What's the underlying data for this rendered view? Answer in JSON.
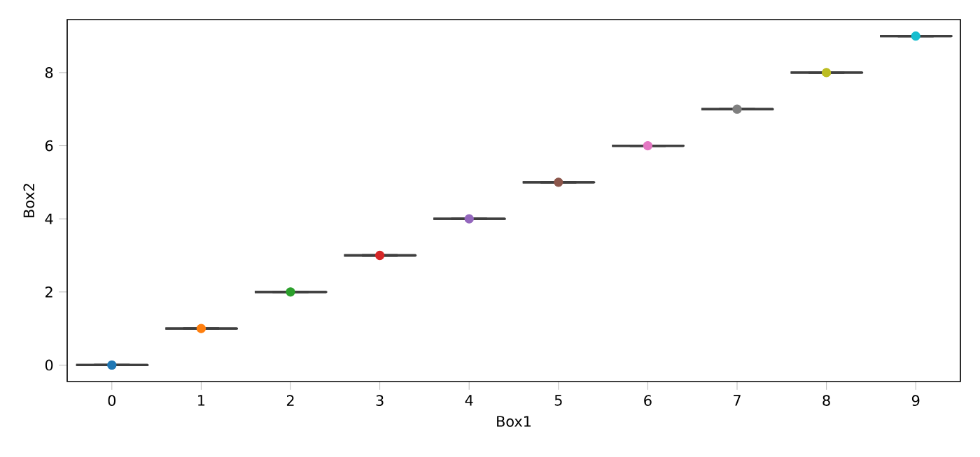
{
  "chart_data": {
    "type": "box",
    "xlabel": "Box1",
    "ylabel": "Box2",
    "categories": [
      "0",
      "1",
      "2",
      "3",
      "4",
      "5",
      "6",
      "7",
      "8",
      "9"
    ],
    "ylim": [
      -0.45,
      9.45
    ],
    "yticks": [
      0,
      2,
      4,
      6,
      8
    ],
    "series": [
      {
        "type": "box",
        "color": "#3f3f3f",
        "boxes": [
          {
            "low": 0,
            "q1": 0,
            "median": 0,
            "q3": 0,
            "high": 0
          },
          {
            "low": 1,
            "q1": 1,
            "median": 1,
            "q3": 1,
            "high": 1
          },
          {
            "low": 2,
            "q1": 2,
            "median": 2,
            "q3": 2,
            "high": 2
          },
          {
            "low": 3,
            "q1": 3,
            "median": 3,
            "q3": 3,
            "high": 3
          },
          {
            "low": 4,
            "q1": 4,
            "median": 4,
            "q3": 4,
            "high": 4
          },
          {
            "low": 5,
            "q1": 5,
            "median": 5,
            "q3": 5,
            "high": 5
          },
          {
            "low": 6,
            "q1": 6,
            "median": 6,
            "q3": 6,
            "high": 6
          },
          {
            "low": 7,
            "q1": 7,
            "median": 7,
            "q3": 7,
            "high": 7
          },
          {
            "low": 8,
            "q1": 8,
            "median": 8,
            "q3": 8,
            "high": 8
          },
          {
            "low": 9,
            "q1": 9,
            "median": 9,
            "q3": 9,
            "high": 9
          }
        ]
      },
      {
        "type": "scatter",
        "marker": "circle",
        "x": [
          "0",
          "1",
          "2",
          "3",
          "4",
          "5",
          "6",
          "7",
          "8",
          "9"
        ],
        "values": [
          0,
          1,
          2,
          3,
          4,
          5,
          6,
          7,
          8,
          9
        ],
        "colors": [
          "#1f77b4",
          "#ff7f0e",
          "#2ca02c",
          "#d62728",
          "#9467bd",
          "#8c564b",
          "#e377c2",
          "#7f7f7f",
          "#bcbd22",
          "#17becf"
        ]
      }
    ]
  }
}
